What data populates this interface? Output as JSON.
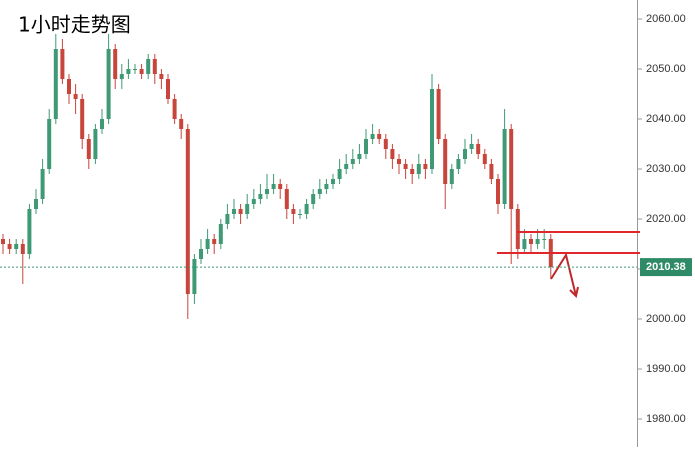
{
  "chart_data": {
    "type": "candlestick",
    "title": "1小时走势图",
    "up_color": "#3d9a74",
    "down_color": "#c8453c",
    "open": [
      2016,
      2015,
      2014,
      2015,
      2013,
      2022,
      2024,
      2030,
      2040,
      2054,
      2048,
      2045,
      2044,
      2036,
      2032,
      2038,
      2040,
      2054,
      2048,
      2049,
      2050,
      2050,
      2049,
      2052,
      2049,
      2048,
      2044,
      2040,
      2038,
      2005,
      2012,
      2014,
      2016,
      2015,
      2019,
      2021,
      2022,
      2021,
      2023,
      2024,
      2025,
      2026,
      2027,
      2026,
      2022,
      2021,
      2021,
      2023,
      2025,
      2026,
      2027,
      2028,
      2030,
      2031,
      2032,
      2033,
      2036,
      2037,
      2036,
      2034,
      2032,
      2031,
      2030,
      2029,
      2031,
      2030,
      2046,
      2036,
      2027,
      2030,
      2032,
      2034,
      2035,
      2033,
      2031,
      2028,
      2023,
      2038,
      2022,
      2014,
      2016,
      2015,
      2016,
      2016
    ],
    "high": [
      2017,
      2016,
      2016,
      2016,
      2023,
      2026,
      2032,
      2042,
      2057,
      2056,
      2049,
      2047,
      2045,
      2037,
      2039,
      2042,
      2057,
      2055,
      2051,
      2052,
      2051,
      2051,
      2053,
      2053,
      2050,
      2049,
      2045,
      2041,
      2039,
      2013,
      2016,
      2018,
      2017,
      2020,
      2023,
      2024,
      2023,
      2025,
      2026,
      2027,
      2029,
      2029,
      2028,
      2027,
      2023,
      2022,
      2024,
      2026,
      2028,
      2028,
      2029,
      2032,
      2033,
      2034,
      2035,
      2038,
      2039,
      2038,
      2037,
      2035,
      2033,
      2032,
      2031,
      2033,
      2032,
      2049,
      2047,
      2037,
      2031,
      2033,
      2036,
      2037,
      2036,
      2034,
      2032,
      2029,
      2042,
      2039,
      2023,
      2018,
      2017,
      2018,
      2018,
      2017
    ],
    "low": [
      2013,
      2013,
      2013,
      2007,
      2012,
      2021,
      2023,
      2029,
      2039,
      2047,
      2043,
      2041,
      2034,
      2030,
      2031,
      2037,
      2039,
      2046,
      2046,
      2048,
      2049,
      2048,
      2048,
      2047,
      2046,
      2043,
      2039,
      2036,
      2000,
      2003,
      2011,
      2013,
      2013,
      2014,
      2018,
      2020,
      2019,
      2020,
      2022,
      2023,
      2024,
      2025,
      2024,
      2020,
      2019,
      2020,
      2020,
      2022,
      2024,
      2025,
      2026,
      2027,
      2029,
      2030,
      2031,
      2032,
      2035,
      2035,
      2032,
      2030,
      2029,
      2028,
      2027,
      2028,
      2028,
      2029,
      2035,
      2022,
      2026,
      2029,
      2031,
      2033,
      2032,
      2030,
      2027,
      2021,
      2022,
      2011,
      2012,
      2013,
      2013,
      2014,
      2014,
      2008
    ],
    "close": [
      2015,
      2014,
      2015,
      2013,
      2022,
      2024,
      2030,
      2040,
      2054,
      2048,
      2045,
      2044,
      2036,
      2032,
      2038,
      2040,
      2054,
      2048,
      2049,
      2050,
      2050,
      2049,
      2052,
      2049,
      2048,
      2044,
      2040,
      2038,
      2005,
      2012,
      2014,
      2016,
      2015,
      2019,
      2021,
      2022,
      2021,
      2023,
      2024,
      2025,
      2026,
      2027,
      2026,
      2022,
      2021,
      2021,
      2023,
      2025,
      2026,
      2027,
      2028,
      2030,
      2031,
      2032,
      2033,
      2036,
      2037,
      2036,
      2034,
      2032,
      2031,
      2030,
      2029,
      2031,
      2030,
      2046,
      2036,
      2027,
      2030,
      2032,
      2034,
      2035,
      2033,
      2031,
      2028,
      2023,
      2038,
      2022,
      2014,
      2016,
      2015,
      2016,
      2016,
      2010.38
    ],
    "last_price": 2010.38,
    "ylim": [
      1974.4,
      2063.8
    ],
    "yticks": [
      {
        "value": 2060,
        "label": "2060.00"
      },
      {
        "value": 2050,
        "label": "2050.00"
      },
      {
        "value": 2040,
        "label": "2040.00"
      },
      {
        "value": 2030,
        "label": "2030.00"
      },
      {
        "value": 2020,
        "label": "2020.00"
      },
      {
        "value": 2010,
        "label": "2010.00"
      },
      {
        "value": 2000,
        "label": "2000.00"
      },
      {
        "value": 1990,
        "label": "1990.00"
      },
      {
        "value": 1980,
        "label": "1980.00"
      }
    ]
  }
}
